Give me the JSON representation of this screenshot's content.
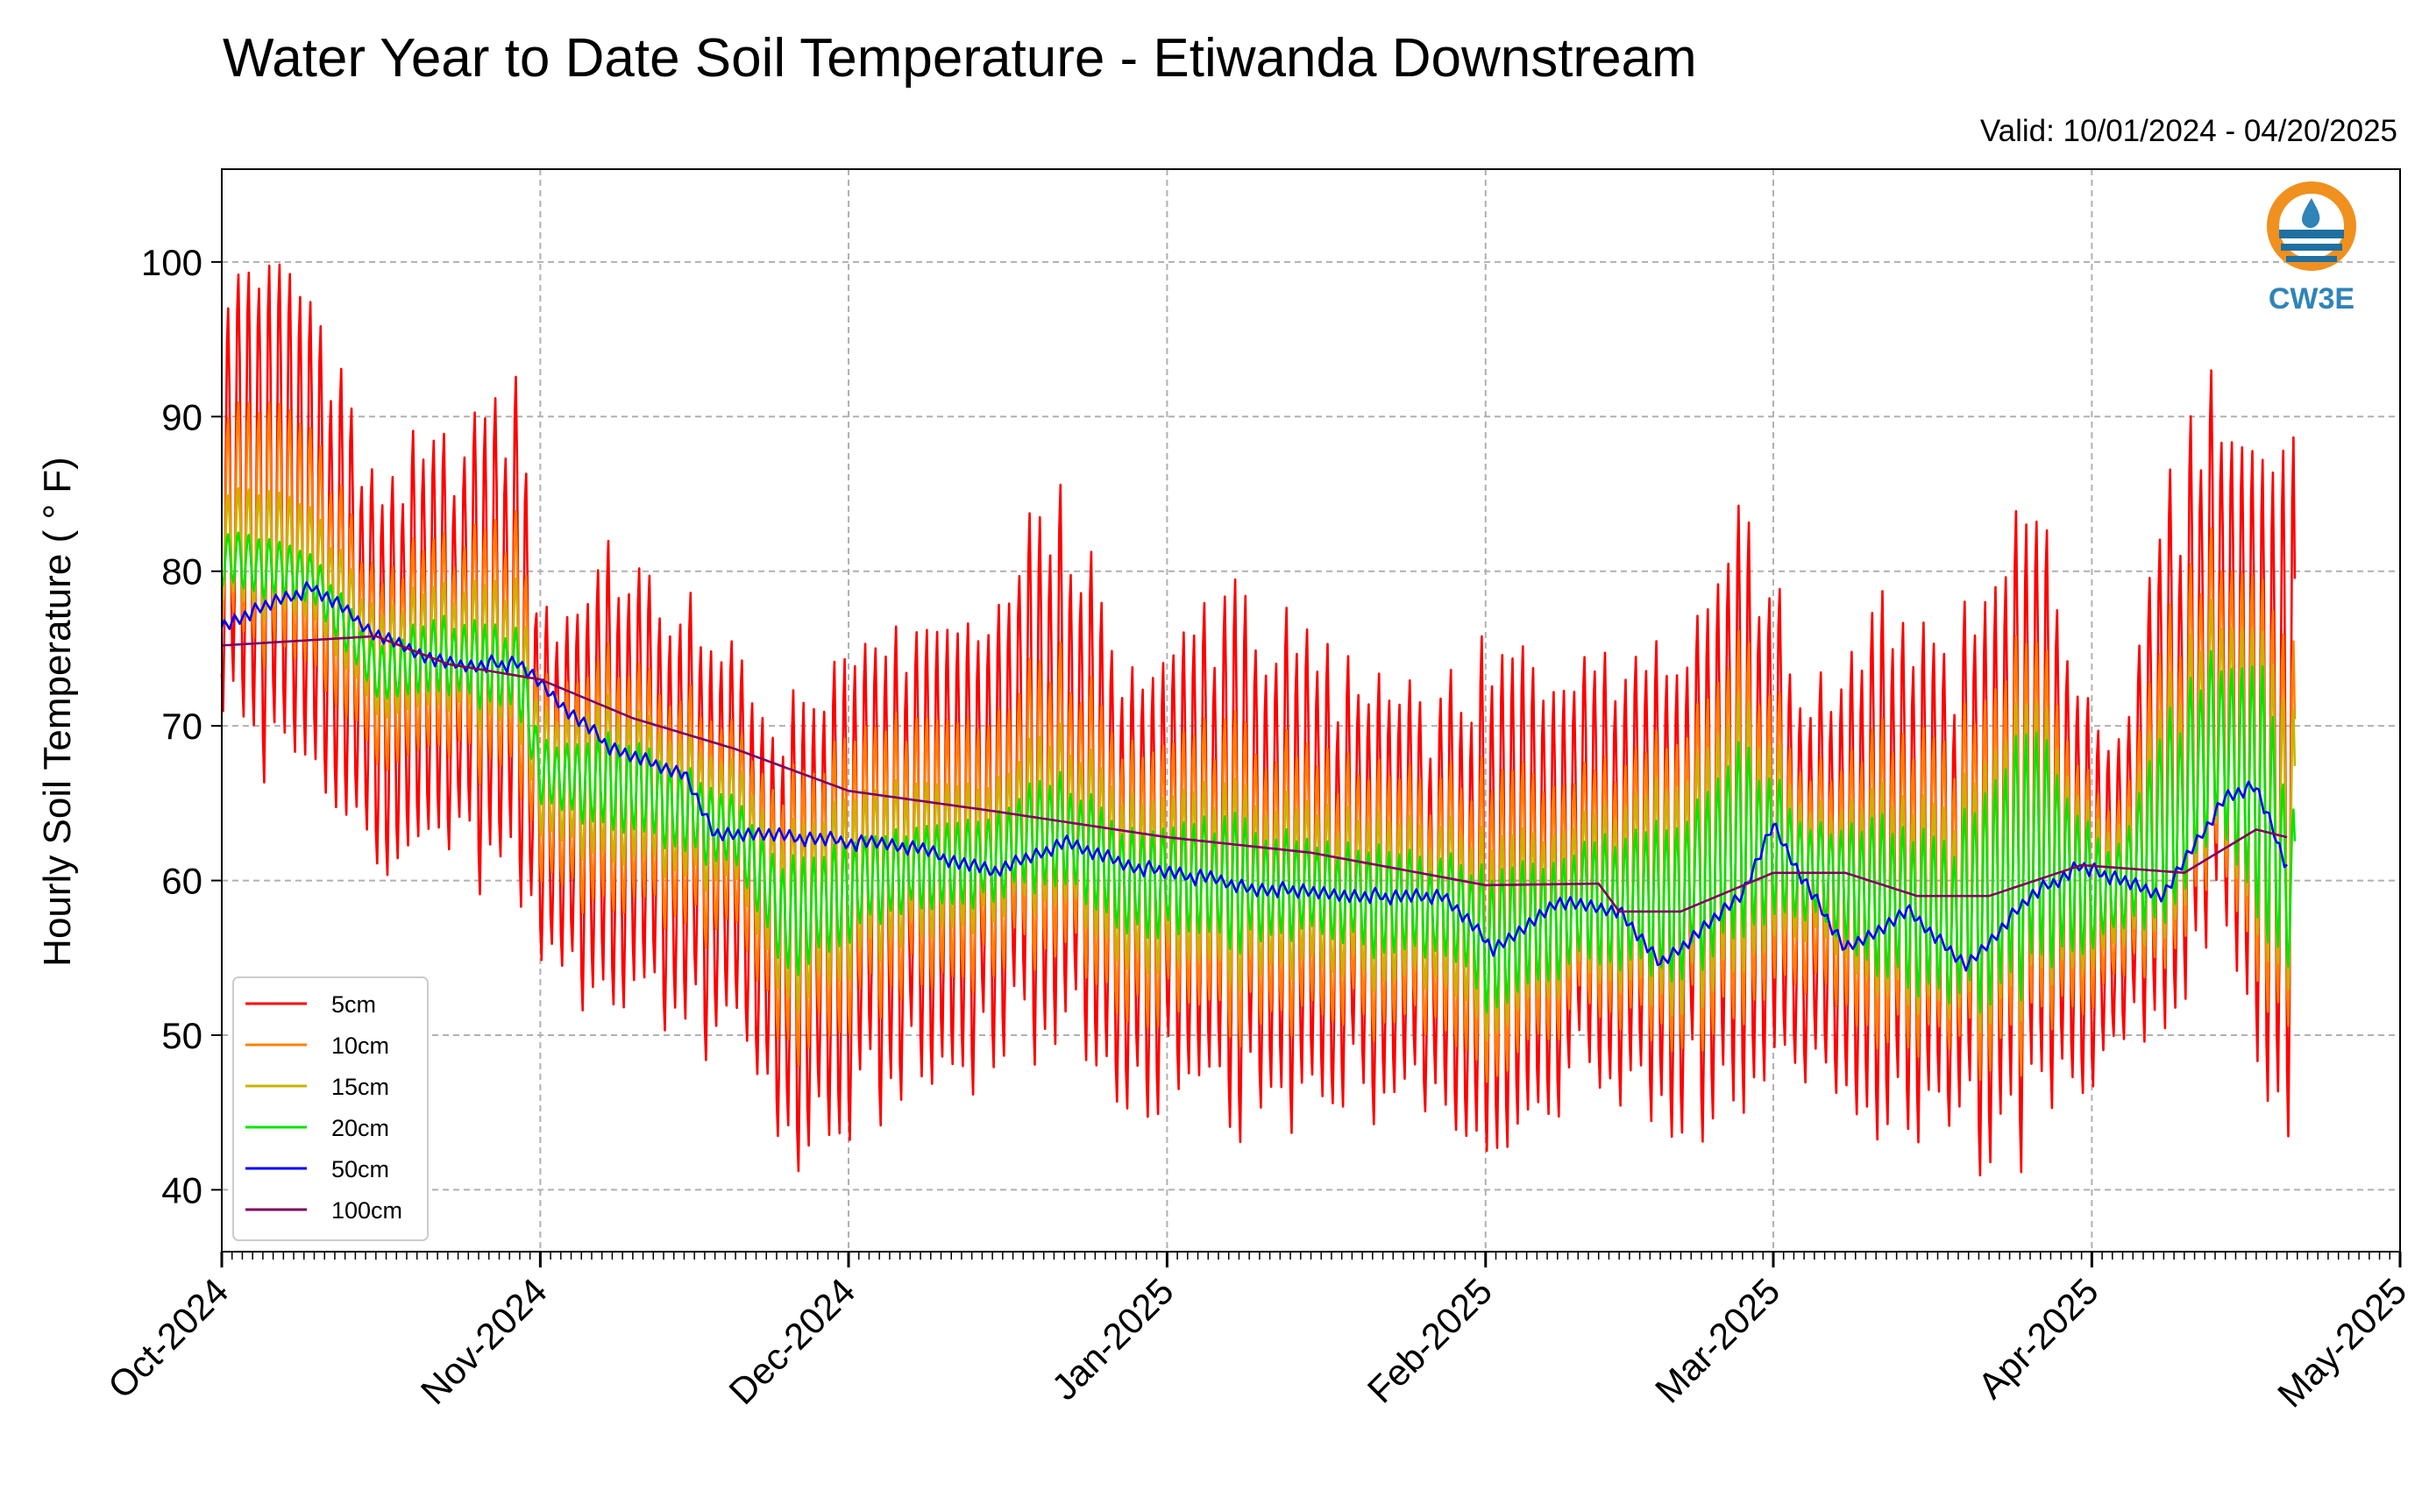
{
  "chart_data": {
    "type": "line",
    "title": "Water Year to Date Soil Temperature - Etiwanda Downstream",
    "subtitle": "Valid: 10/01/2024 - 04/20/2025",
    "ylabel": "Hourly Soil Temperature ( ° F)",
    "xlabel": "",
    "ylim": [
      36,
      106
    ],
    "yticks": [
      40,
      50,
      60,
      70,
      80,
      90,
      100
    ],
    "xlim": [
      "2024-10-01",
      "2025-05-01"
    ],
    "xticks": [
      "Oct-2024",
      "Nov-2024",
      "Dec-2024",
      "Jan-2025",
      "Feb-2025",
      "Mar-2025",
      "Apr-2025",
      "May-2025"
    ],
    "grid": true,
    "legend_position": "lower-left",
    "series": [
      {
        "name": "5cm",
        "color": "#ff0000",
        "anchor_dates": [
          "2024-10-01",
          "2024-10-10",
          "2024-10-16",
          "2024-10-23",
          "2024-10-30",
          "2024-11-01",
          "2024-11-10",
          "2024-11-20",
          "2024-11-25",
          "2024-12-05",
          "2024-12-15",
          "2024-12-21",
          "2024-12-28",
          "2025-01-08",
          "2025-01-15",
          "2025-01-22",
          "2025-01-30",
          "2025-02-01",
          "2025-02-05",
          "2025-02-12",
          "2025-02-20",
          "2025-02-26",
          "2025-03-05",
          "2025-03-12",
          "2025-03-18",
          "2025-03-26",
          "2025-04-03",
          "2025-04-08",
          "2025-04-13",
          "2025-04-18",
          "2025-04-20"
        ],
        "daily_max": [
          101,
          97,
          84,
          88,
          91,
          77,
          80,
          73,
          70,
          75,
          76,
          85,
          72,
          78,
          73,
          72,
          71,
          73,
          74,
          75,
          75,
          84,
          70,
          78,
          73,
          84,
          66,
          84,
          90,
          85,
          86
        ],
        "daily_min": [
          70,
          68,
          62,
          62,
          61,
          55,
          52,
          51,
          43,
          47,
          50,
          51,
          47,
          46,
          47,
          45,
          45,
          41,
          44,
          48,
          45,
          47,
          49,
          45,
          44,
          45,
          50,
          50,
          56,
          48,
          46
        ]
      },
      {
        "name": "10cm",
        "color": "#ff8000",
        "anchor_dates": [
          "2024-10-01",
          "2024-10-10",
          "2024-10-16",
          "2024-10-23",
          "2024-10-30",
          "2024-11-01",
          "2024-11-10",
          "2024-11-20",
          "2024-11-25",
          "2024-12-05",
          "2024-12-15",
          "2024-12-21",
          "2024-12-28",
          "2025-01-08",
          "2025-01-15",
          "2025-01-22",
          "2025-01-30",
          "2025-02-01",
          "2025-02-05",
          "2025-02-12",
          "2025-02-20",
          "2025-02-26",
          "2025-03-05",
          "2025-03-12",
          "2025-03-18",
          "2025-03-26",
          "2025-04-03",
          "2025-04-08",
          "2025-04-13",
          "2025-04-18",
          "2025-04-20"
        ],
        "daily_max": [
          92,
          89,
          79,
          82,
          83,
          73,
          74,
          69,
          66,
          70,
          70,
          75,
          68,
          70,
          67,
          67,
          66,
          66,
          67,
          68,
          70,
          76,
          66,
          70,
          68,
          76,
          63,
          76,
          81,
          78,
          74
        ],
        "daily_min": [
          76,
          74,
          68,
          68,
          67,
          60,
          58,
          57,
          49,
          53,
          55,
          56,
          52,
          51,
          52,
          50,
          50,
          46,
          49,
          52,
          50,
          52,
          54,
          50,
          49,
          50,
          54,
          54,
          60,
          53,
          52
        ]
      },
      {
        "name": "15cm",
        "color": "#c8b400",
        "anchor_dates": [
          "2024-10-01",
          "2024-10-10",
          "2024-10-16",
          "2024-10-23",
          "2024-10-30",
          "2024-11-01",
          "2024-11-10",
          "2024-11-20",
          "2024-11-25",
          "2024-12-05",
          "2024-12-15",
          "2024-12-21",
          "2024-12-28",
          "2025-01-08",
          "2025-01-15",
          "2025-01-22",
          "2025-01-30",
          "2025-02-01",
          "2025-02-05",
          "2025-02-12",
          "2025-02-20",
          "2025-02-26",
          "2025-03-05",
          "2025-03-12",
          "2025-03-18",
          "2025-03-26",
          "2025-04-03",
          "2025-04-08",
          "2025-04-13",
          "2025-04-18",
          "2025-04-20"
        ],
        "daily_max": [
          86,
          84,
          77,
          79,
          79,
          71,
          71,
          67,
          63,
          66,
          66,
          70,
          65,
          66,
          64,
          64,
          63,
          62,
          63,
          65,
          67,
          72,
          64,
          66,
          64,
          72,
          62,
          72,
          77,
          75,
          70
        ],
        "daily_min": [
          78,
          77,
          71,
          71,
          70,
          63,
          61,
          60,
          52,
          56,
          58,
          59,
          55,
          54,
          55,
          53,
          53,
          49,
          52,
          54,
          52,
          55,
          57,
          53,
          51,
          53,
          56,
          56,
          62,
          56,
          54
        ]
      },
      {
        "name": "20cm",
        "color": "#00e600",
        "anchor_dates": [
          "2024-10-01",
          "2024-10-10",
          "2024-10-16",
          "2024-10-23",
          "2024-10-30",
          "2024-11-01",
          "2024-11-10",
          "2024-11-20",
          "2024-11-25",
          "2024-12-05",
          "2024-12-15",
          "2024-12-21",
          "2024-12-28",
          "2025-01-08",
          "2025-01-15",
          "2025-01-22",
          "2025-01-30",
          "2025-02-01",
          "2025-02-05",
          "2025-02-12",
          "2025-02-20",
          "2025-02-26",
          "2025-03-05",
          "2025-03-12",
          "2025-03-18",
          "2025-03-26",
          "2025-04-03",
          "2025-04-08",
          "2025-04-13",
          "2025-04-18",
          "2025-04-20"
        ],
        "daily_max": [
          83,
          81,
          75,
          77,
          76,
          69,
          69,
          65,
          61,
          63,
          64,
          67,
          63,
          64,
          62,
          62,
          61,
          60,
          61,
          63,
          64,
          69,
          63,
          64,
          62,
          70,
          61,
          70,
          74,
          73,
          64
        ],
        "daily_min": [
          79,
          78,
          72,
          72,
          71,
          65,
          63,
          61,
          54,
          58,
          59,
          60,
          57,
          56,
          57,
          55,
          55,
          51,
          53,
          55,
          54,
          57,
          58,
          54,
          52,
          54,
          57,
          57,
          63,
          57,
          55
        ]
      },
      {
        "name": "50cm",
        "color": "#0000ff",
        "anchor_dates": [
          "2024-10-01",
          "2024-10-10",
          "2024-10-16",
          "2024-10-23",
          "2024-10-27",
          "2024-10-30",
          "2024-11-02",
          "2024-11-08",
          "2024-11-15",
          "2024-11-18",
          "2024-11-22",
          "2024-12-01",
          "2024-12-08",
          "2024-12-15",
          "2024-12-22",
          "2024-12-28",
          "2025-01-10",
          "2025-01-20",
          "2025-01-28",
          "2025-02-02",
          "2025-02-08",
          "2025-02-14",
          "2025-02-18",
          "2025-02-26",
          "2025-03-01",
          "2025-03-08",
          "2025-03-14",
          "2025-03-20",
          "2025-03-26",
          "2025-03-31",
          "2025-04-08",
          "2025-04-14",
          "2025-04-17",
          "2025-04-20"
        ],
        "values": [
          76.5,
          79,
          76,
          74,
          74,
          74,
          72,
          68.5,
          67,
          63,
          63,
          62.5,
          62,
          60.5,
          62.5,
          61,
          59.5,
          59,
          59,
          55.5,
          58.5,
          58,
          54.5,
          59,
          63.5,
          55.5,
          58,
          54.5,
          59,
          61,
          59,
          65.5,
          66,
          61
        ]
      },
      {
        "name": "100cm",
        "color": "#800060",
        "anchor_dates": [
          "2024-10-01",
          "2024-10-16",
          "2024-10-23",
          "2024-11-01",
          "2024-11-10",
          "2024-11-20",
          "2024-12-01",
          "2024-12-15",
          "2025-01-01",
          "2025-01-15",
          "2025-02-01",
          "2025-02-12",
          "2025-02-14",
          "2025-02-20",
          "2025-03-01",
          "2025-03-08",
          "2025-03-15",
          "2025-03-22",
          "2025-03-31",
          "2025-04-10",
          "2025-04-17",
          "2025-04-20"
        ],
        "values": [
          75.2,
          75.8,
          74,
          73,
          70.5,
          68.5,
          65.8,
          64.5,
          62.8,
          61.8,
          59.7,
          59.8,
          58,
          58,
          60.5,
          60.5,
          59,
          59,
          61,
          60.5,
          63.3,
          62.8
        ]
      }
    ]
  },
  "logo": {
    "text": "CW3E",
    "color_ring": "#f0901e",
    "color_wave": "#1f6fa0",
    "color_text": "#2f84b8"
  }
}
